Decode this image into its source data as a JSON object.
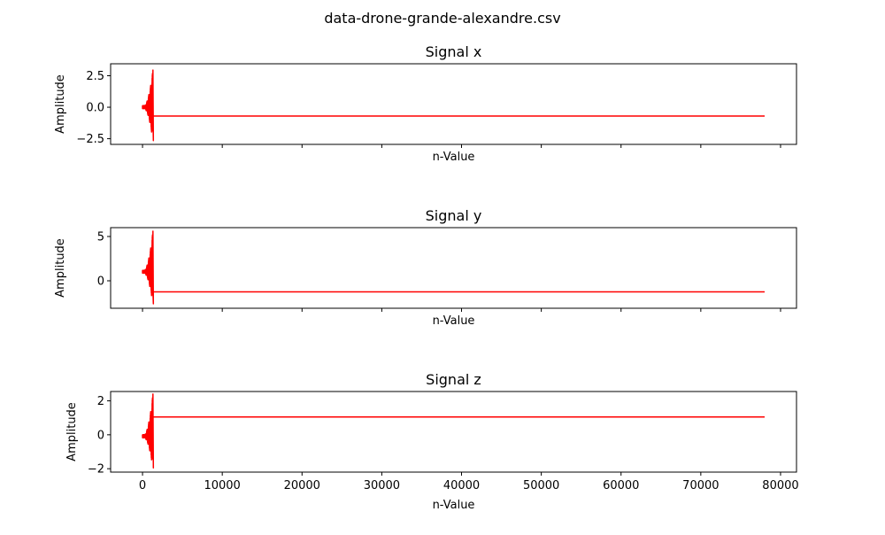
{
  "figure": {
    "title": "data-drone-grande-alexandre.csv"
  },
  "chart_data": [
    {
      "type": "line",
      "title": "Signal x",
      "xlabel": "n-Value",
      "ylabel": "Amplitude",
      "xlim": [
        -4000,
        82000
      ],
      "ylim": [
        -2.95,
        3.45
      ],
      "x_ticks": [
        0,
        10000,
        20000,
        30000,
        40000,
        50000,
        60000,
        70000,
        80000
      ],
      "x_tick_labels_visible": false,
      "y_ticks": [
        -2.5,
        0.0,
        2.5
      ],
      "y_tick_labels": [
        "−2.5",
        "0.0",
        "2.5"
      ],
      "color": "#ff0000",
      "burst": {
        "x_start": 0,
        "x_end": 1300,
        "base": 0.0,
        "max": 2.95,
        "min": -2.65
      },
      "flat": {
        "x_start": 1300,
        "x_end": 78000,
        "value": -0.7
      }
    },
    {
      "type": "line",
      "title": "Signal y",
      "xlabel": "n-Value",
      "ylabel": "Amplitude",
      "xlim": [
        -4000,
        82000
      ],
      "ylim": [
        -3.1,
        6.0
      ],
      "x_ticks": [
        0,
        10000,
        20000,
        30000,
        40000,
        50000,
        60000,
        70000,
        80000
      ],
      "x_tick_labels_visible": false,
      "y_ticks": [
        0,
        5
      ],
      "y_tick_labels": [
        "0",
        "5"
      ],
      "color": "#ff0000",
      "burst": {
        "x_start": 0,
        "x_end": 1300,
        "base": 1.0,
        "max": 5.6,
        "min": -2.6
      },
      "flat": {
        "x_start": 1300,
        "x_end": 78000,
        "value": -1.25
      }
    },
    {
      "type": "line",
      "title": "Signal z",
      "xlabel": "n-Value",
      "ylabel": "Amplitude",
      "xlim": [
        -4000,
        82000
      ],
      "ylim": [
        -2.2,
        2.55
      ],
      "x_ticks": [
        0,
        10000,
        20000,
        30000,
        40000,
        50000,
        60000,
        70000,
        80000
      ],
      "x_tick_labels": [
        "0",
        "10000",
        "20000",
        "30000",
        "40000",
        "50000",
        "60000",
        "70000",
        "80000"
      ],
      "x_tick_labels_visible": true,
      "y_ticks": [
        -2,
        0,
        2
      ],
      "y_tick_labels": [
        "−2",
        "0",
        "2"
      ],
      "color": "#ff0000",
      "burst": {
        "x_start": 0,
        "x_end": 1300,
        "base": -0.1,
        "max": 2.4,
        "min": -1.95
      },
      "flat": {
        "x_start": 1300,
        "x_end": 78000,
        "value": 1.05
      }
    }
  ]
}
